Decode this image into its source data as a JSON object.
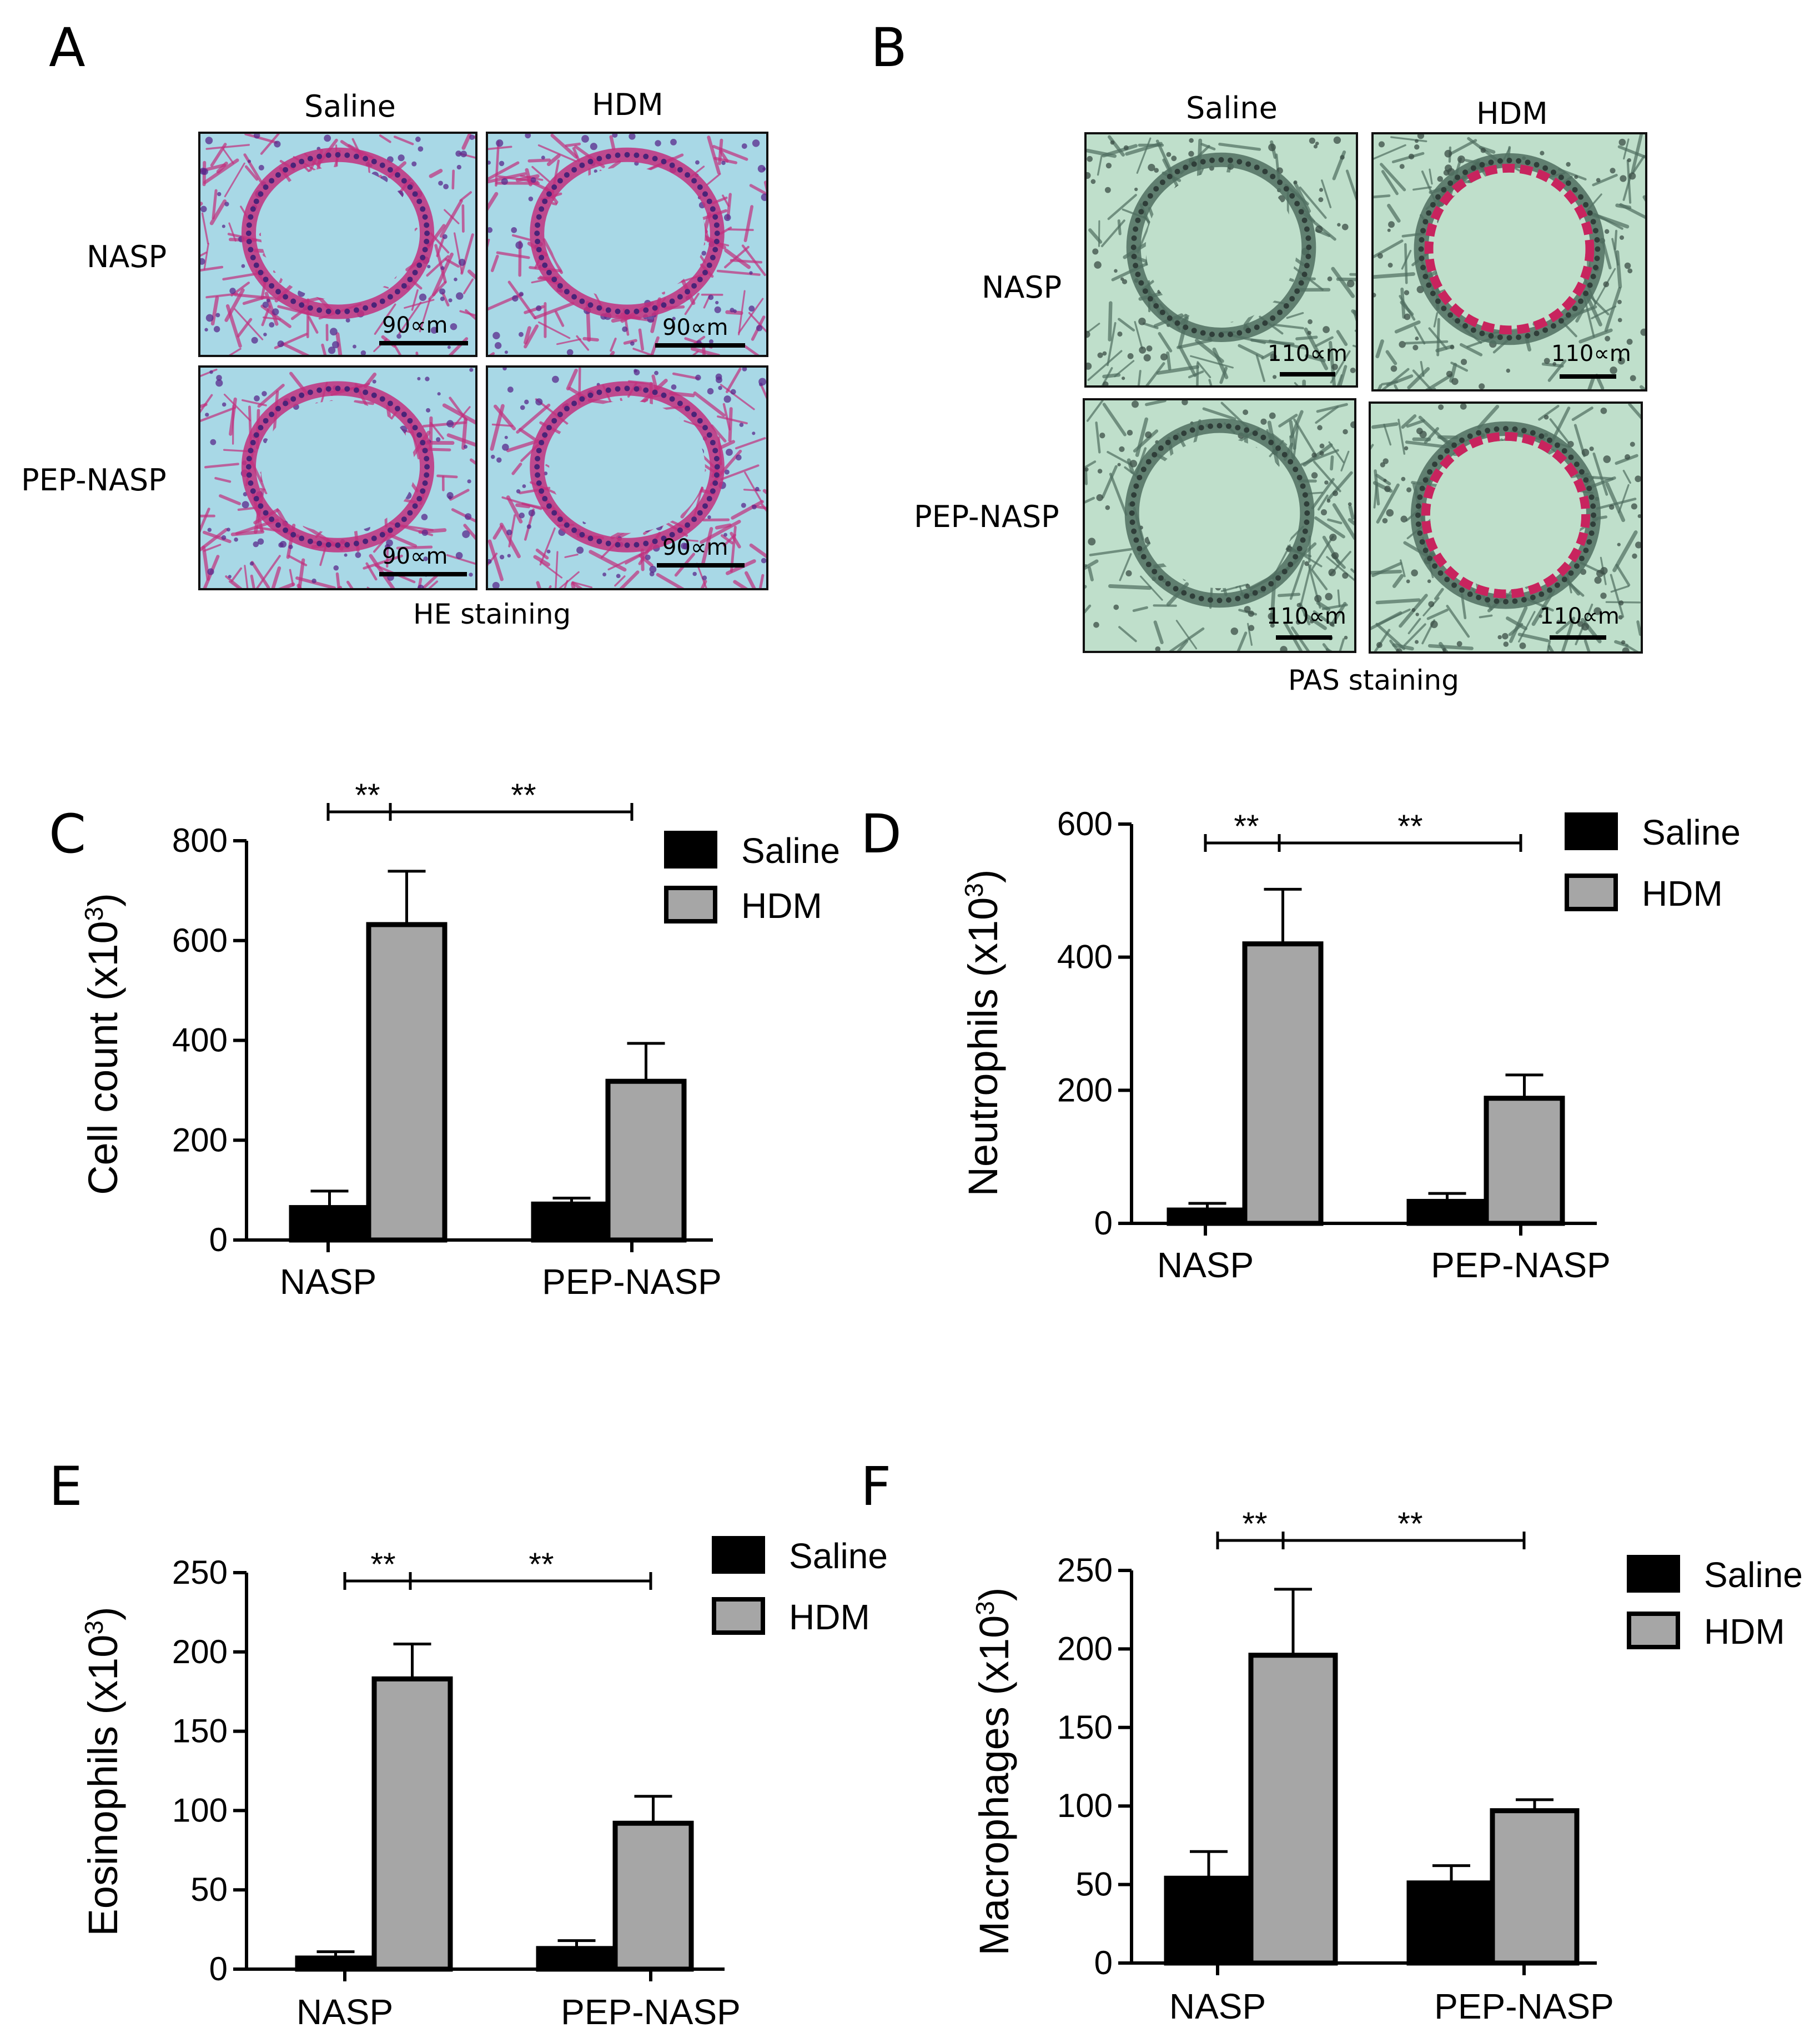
{
  "panel_A": {
    "letter": "A",
    "col_labels": [
      "Saline",
      "HDM"
    ],
    "row_labels": [
      "NASP",
      "PEP-NASP"
    ],
    "scale_labels": [
      "90∝m",
      "90∝m",
      "90∝m",
      "90∝m"
    ],
    "caption": "HE staining",
    "colors": {
      "stain": "#c2307e",
      "lumen": "#a8d8e6"
    }
  },
  "panel_B": {
    "letter": "B",
    "col_labels": [
      "Saline",
      "HDM"
    ],
    "row_labels": [
      "NASP",
      "PEP-NASP"
    ],
    "scale_labels": [
      "110∝m",
      "110∝m",
      "110∝m",
      "110∝m"
    ],
    "caption": "PAS staining",
    "colors": {
      "stain": "#4f6e60",
      "lumen": "#bfdfcb",
      "pas_positive": "#c8245e"
    }
  },
  "chart_data": [
    {
      "letter": "C",
      "type": "bar",
      "ylabel": "Cell count (x10",
      "ylabel_sup": "3",
      "ylabel_end": ")",
      "categories": [
        "NASP",
        "PEP-NASP"
      ],
      "series": [
        {
          "name": "Saline",
          "values": [
            65,
            72
          ],
          "errors": [
            33,
            12
          ],
          "color": "#000000"
        },
        {
          "name": "HDM",
          "values": [
            632,
            318
          ],
          "errors": [
            107,
            76
          ],
          "color": "#a6a6a6"
        }
      ],
      "ylim": [
        0,
        800
      ],
      "yticks": [
        "0",
        "200",
        "400",
        "600",
        "800"
      ],
      "ytick_values": [
        0,
        200,
        400,
        600,
        800
      ],
      "significance": [
        "**",
        "**"
      ],
      "legend": "top-right"
    },
    {
      "letter": "D",
      "type": "bar",
      "ylabel": "Neutrophils (x10",
      "ylabel_sup": "3",
      "ylabel_end": ")",
      "categories": [
        "NASP",
        "PEP-NASP"
      ],
      "series": [
        {
          "name": "Saline",
          "values": [
            20,
            33
          ],
          "errors": [
            10,
            12
          ],
          "color": "#000000"
        },
        {
          "name": "HDM",
          "values": [
            420,
            188
          ],
          "errors": [
            82,
            35
          ],
          "color": "#a6a6a6"
        }
      ],
      "ylim": [
        0,
        600
      ],
      "yticks": [
        "0",
        "200",
        "400",
        "600"
      ],
      "ytick_values": [
        0,
        200,
        400,
        600
      ],
      "significance": [
        "**",
        "**"
      ],
      "legend": "top-right"
    },
    {
      "letter": "E",
      "type": "bar",
      "ylabel": "Eosinophils (x10",
      "ylabel_sup": "3",
      "ylabel_end": ")",
      "categories": [
        "NASP",
        "PEP-NASP"
      ],
      "series": [
        {
          "name": "Saline",
          "values": [
            7,
            13
          ],
          "errors": [
            4,
            5
          ],
          "color": "#000000"
        },
        {
          "name": "HDM",
          "values": [
            183,
            92
          ],
          "errors": [
            22,
            17
          ],
          "color": "#a6a6a6"
        }
      ],
      "ylim": [
        0,
        250
      ],
      "yticks": [
        "0",
        "50",
        "100",
        "150",
        "200",
        "250"
      ],
      "ytick_values": [
        0,
        50,
        100,
        150,
        200,
        250
      ],
      "significance": [
        "**",
        "**"
      ],
      "legend": "top-right"
    },
    {
      "letter": "F",
      "type": "bar",
      "ylabel": "Macrophages (x10",
      "ylabel_sup": "3",
      "ylabel_end": ")",
      "categories": [
        "NASP",
        "PEP-NASP"
      ],
      "series": [
        {
          "name": "Saline",
          "values": [
            54,
            51
          ],
          "errors": [
            17,
            11
          ],
          "color": "#000000"
        },
        {
          "name": "HDM",
          "values": [
            196,
            97
          ],
          "errors": [
            42,
            7
          ],
          "color": "#a6a6a6"
        }
      ],
      "ylim": [
        0,
        250
      ],
      "yticks": [
        "0",
        "50",
        "100",
        "150",
        "200",
        "250"
      ],
      "ytick_values": [
        0,
        50,
        100,
        150,
        200,
        250
      ],
      "significance": [
        "**",
        "**"
      ],
      "legend": "top-right"
    }
  ]
}
